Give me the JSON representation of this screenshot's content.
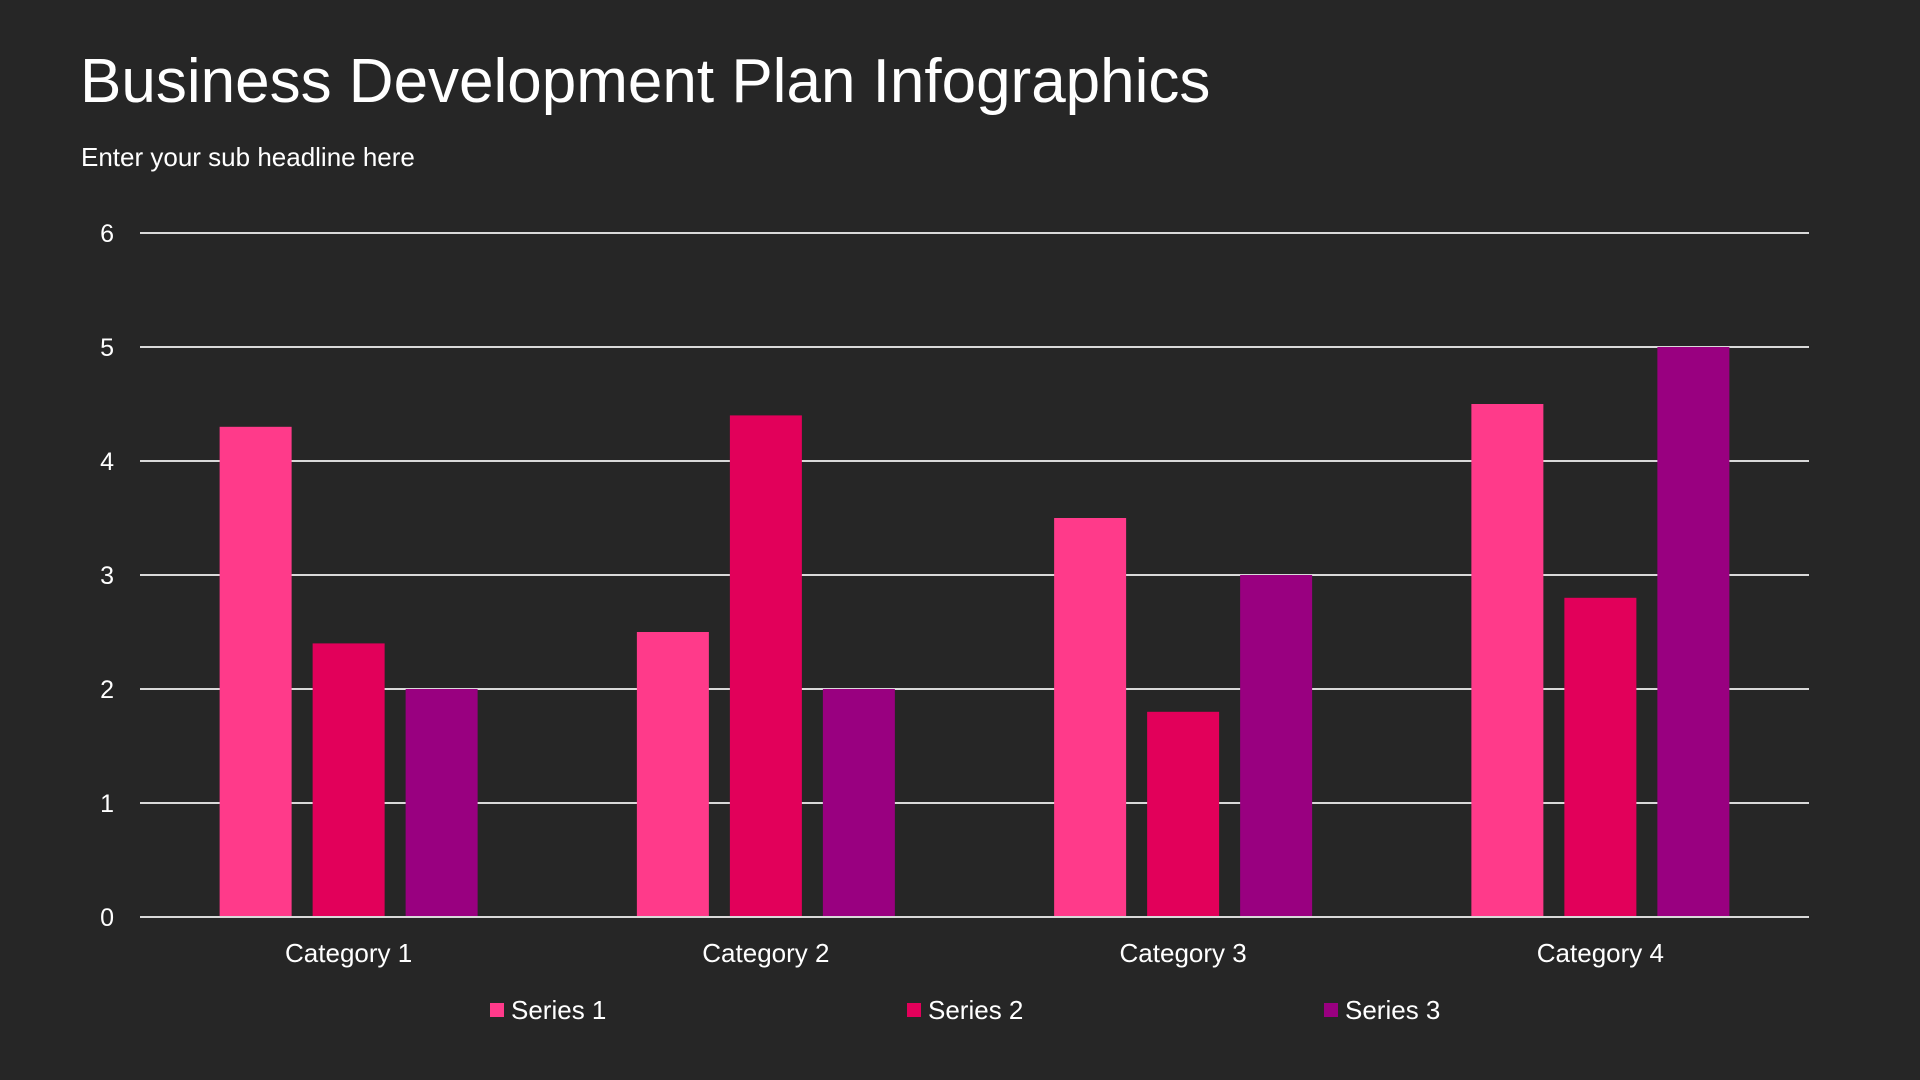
{
  "header": {
    "title": "Business Development Plan Infographics",
    "subtitle": "Enter your sub headline here"
  },
  "chart_data": {
    "type": "bar",
    "categories": [
      "Category 1",
      "Category 2",
      "Category 3",
      "Category 4"
    ],
    "series": [
      {
        "name": "Series 1",
        "values": [
          4.3,
          2.5,
          3.5,
          4.5
        ],
        "color": "#FF3A8A"
      },
      {
        "name": "Series 2",
        "values": [
          2.4,
          4.4,
          1.8,
          2.8
        ],
        "color": "#E2005A"
      },
      {
        "name": "Series 3",
        "values": [
          2,
          2,
          3,
          5
        ],
        "color": "#990080"
      }
    ],
    "ylim": [
      0,
      6
    ],
    "yticks": [
      "0",
      "1",
      "2",
      "3",
      "4",
      "5",
      "6"
    ],
    "grid": true,
    "legend": "bottom",
    "background": "#262626"
  }
}
